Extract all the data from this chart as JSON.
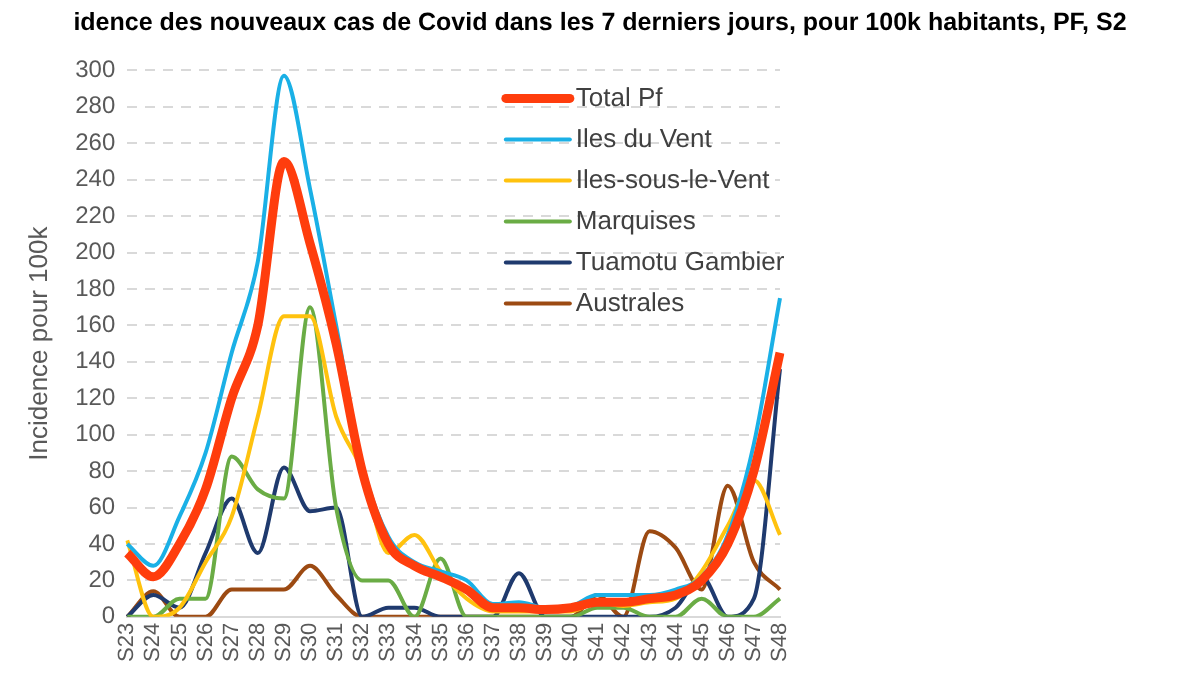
{
  "chart_data": {
    "type": "line",
    "title": "idence des nouveaux cas de Covid dans les 7 derniers jours, pour 100k habitants, PF, S2",
    "ylabel": "Incidence pour 100k",
    "categories": [
      "S23",
      "S24",
      "S25",
      "S26",
      "S27",
      "S28",
      "S29",
      "S30",
      "S31",
      "S32",
      "S33",
      "S34",
      "S35",
      "S36",
      "S37",
      "S38",
      "S39",
      "S40",
      "S41",
      "S42",
      "S43",
      "S44",
      "S45",
      "S46",
      "S47",
      "S48"
    ],
    "series": [
      {
        "name": "Total Pf",
        "color": "#ff3d0d",
        "values": [
          35,
          22,
          40,
          70,
          120,
          160,
          250,
          205,
          150,
          80,
          40,
          28,
          22,
          15,
          5,
          5,
          4,
          5,
          8,
          8,
          10,
          12,
          20,
          40,
          80,
          145
        ]
      },
      {
        "name": "Iles du Vent",
        "color": "#1ab0e6",
        "values": [
          40,
          28,
          55,
          90,
          145,
          195,
          297,
          235,
          160,
          84,
          44,
          30,
          25,
          20,
          7,
          8,
          5,
          6,
          12,
          12,
          12,
          15,
          22,
          45,
          95,
          175
        ]
      },
      {
        "name": "Iles-sous-le-Vent",
        "color": "#ffc20e",
        "values": [
          42,
          0,
          5,
          30,
          55,
          110,
          165,
          165,
          110,
          80,
          35,
          45,
          25,
          10,
          3,
          3,
          3,
          3,
          8,
          6,
          8,
          10,
          25,
          50,
          75,
          45
        ]
      },
      {
        "name": "Marquises",
        "color": "#6aac45",
        "values": [
          0,
          0,
          10,
          10,
          88,
          70,
          65,
          170,
          60,
          20,
          20,
          0,
          32,
          0,
          0,
          0,
          0,
          0,
          5,
          5,
          0,
          0,
          10,
          0,
          0,
          10
        ]
      },
      {
        "name": "Tuamotu Gambier",
        "color": "#1f3a6e",
        "values": [
          0,
          12,
          5,
          35,
          65,
          35,
          82,
          58,
          60,
          0,
          5,
          5,
          0,
          0,
          0,
          24,
          0,
          0,
          0,
          0,
          0,
          5,
          22,
          0,
          10,
          136
        ]
      },
      {
        "name": "Australes",
        "color": "#9c4a12",
        "values": [
          0,
          14,
          0,
          0,
          15,
          15,
          15,
          28,
          12,
          0,
          0,
          0,
          0,
          0,
          0,
          0,
          0,
          0,
          12,
          0,
          47,
          38,
          15,
          72,
          30,
          15
        ]
      }
    ],
    "ylim": [
      0,
      300
    ],
    "yticks": [
      0,
      20,
      40,
      60,
      80,
      100,
      120,
      140,
      160,
      180,
      200,
      220,
      240,
      260,
      280,
      300
    ],
    "grid": "y",
    "legend": "top right",
    "marker": "none",
    "line_style": "solid"
  }
}
